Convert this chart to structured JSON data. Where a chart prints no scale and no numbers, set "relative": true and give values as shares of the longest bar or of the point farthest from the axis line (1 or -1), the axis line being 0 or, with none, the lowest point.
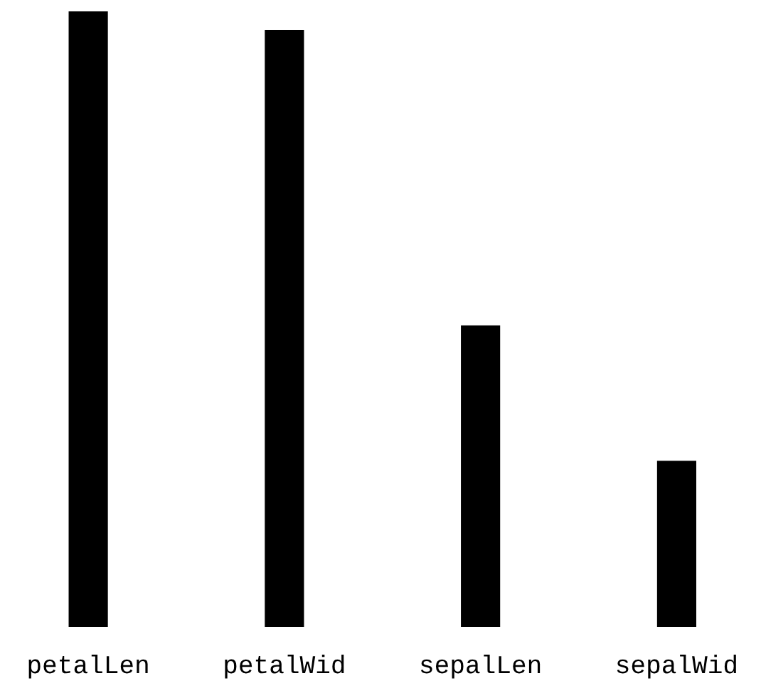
{
  "chart_data": {
    "type": "bar",
    "relative": true,
    "categories": [
      "petalLen",
      "petalWid",
      "sepalLen",
      "sepalWid"
    ],
    "values": [
      1,
      0.97,
      0.49,
      0.27
    ],
    "color": "#000000",
    "grid": false,
    "legend": false
  }
}
